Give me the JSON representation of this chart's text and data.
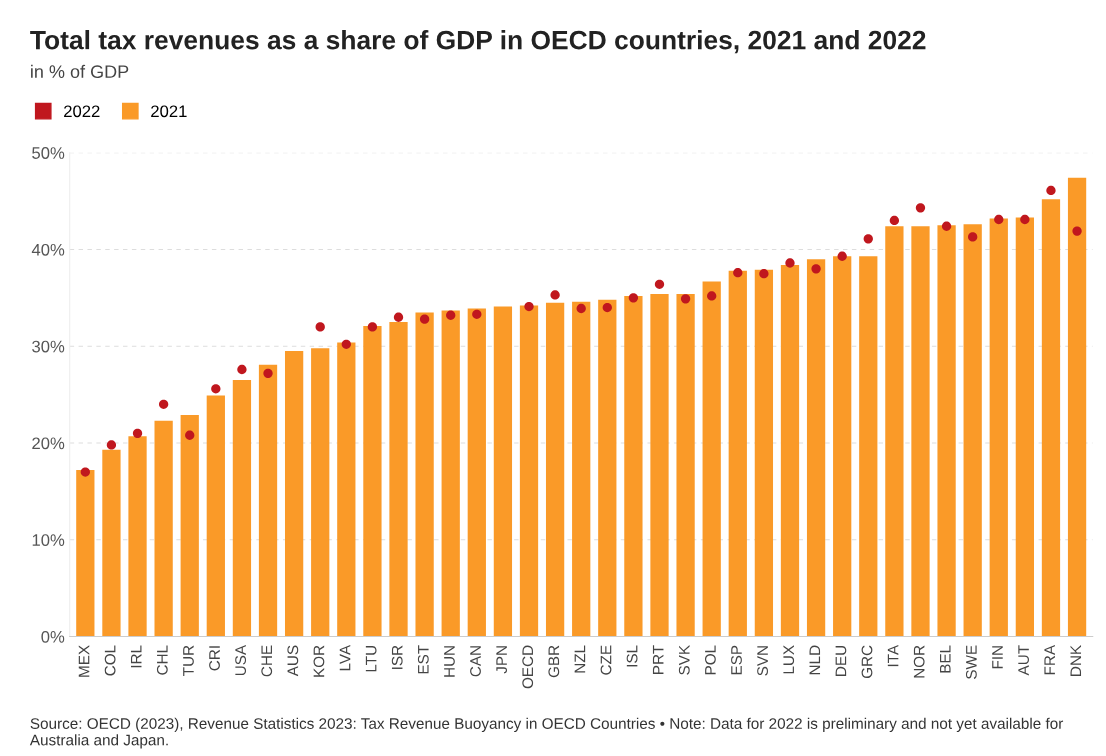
{
  "chart_data": {
    "type": "bar",
    "title": "Total tax revenues as a share of GDP in OECD countries, 2021 and 2022",
    "subtitle": "in % of GDP",
    "categories": [
      "MEX",
      "COL",
      "IRL",
      "CHL",
      "TUR",
      "CRI",
      "USA",
      "CHE",
      "AUS",
      "KOR",
      "LVA",
      "LTU",
      "ISR",
      "EST",
      "HUN",
      "CAN",
      "JPN",
      "OECD",
      "GBR",
      "NZL",
      "CZE",
      "ISL",
      "PRT",
      "SVK",
      "POL",
      "ESP",
      "SVN",
      "LUX",
      "NLD",
      "DEU",
      "GRC",
      "ITA",
      "NOR",
      "BEL",
      "SWE",
      "FIN",
      "AUT",
      "FRA",
      "DNK"
    ],
    "series": [
      {
        "name": "2022",
        "type": "scatter",
        "color": "#c0171e",
        "values": [
          17.0,
          19.8,
          21.0,
          24.0,
          20.8,
          25.6,
          27.6,
          27.2,
          null,
          32.0,
          30.2,
          32.0,
          33.0,
          32.8,
          33.2,
          33.3,
          null,
          34.1,
          35.3,
          33.9,
          34.0,
          35.0,
          36.4,
          34.9,
          35.2,
          37.6,
          37.5,
          38.6,
          38.0,
          39.3,
          41.1,
          43.0,
          44.3,
          42.4,
          41.3,
          43.1,
          43.1,
          46.1,
          41.9
        ]
      },
      {
        "name": "2021",
        "color": "#fa9a28",
        "values": [
          17.2,
          19.3,
          20.7,
          22.3,
          22.9,
          24.9,
          26.5,
          28.1,
          29.5,
          29.8,
          30.4,
          32.1,
          32.5,
          33.5,
          33.7,
          33.9,
          34.1,
          34.2,
          34.5,
          34.6,
          34.8,
          35.2,
          35.4,
          35.4,
          36.7,
          37.8,
          37.9,
          38.4,
          39.0,
          39.3,
          39.3,
          42.4,
          42.4,
          42.5,
          42.6,
          43.2,
          43.3,
          45.2,
          47.4
        ]
      }
    ],
    "ylim": [
      0,
      50
    ],
    "yticks": [
      {
        "value": 0,
        "label": "0%"
      },
      {
        "value": 10,
        "label": "10%"
      },
      {
        "value": 20,
        "label": "20%"
      },
      {
        "value": 30,
        "label": "30%"
      },
      {
        "value": 40,
        "label": "40%"
      },
      {
        "value": 50,
        "label": "50%"
      }
    ],
    "grid": "y",
    "legend": "top left",
    "marker": "circle",
    "annotations": [
      "Source: OECD (2023), Revenue Statistics 2023: Tax Revenue Buoyancy in OECD Countries • Note: Data for 2022 is preliminary and not yet available for Australia and Japan."
    ]
  }
}
